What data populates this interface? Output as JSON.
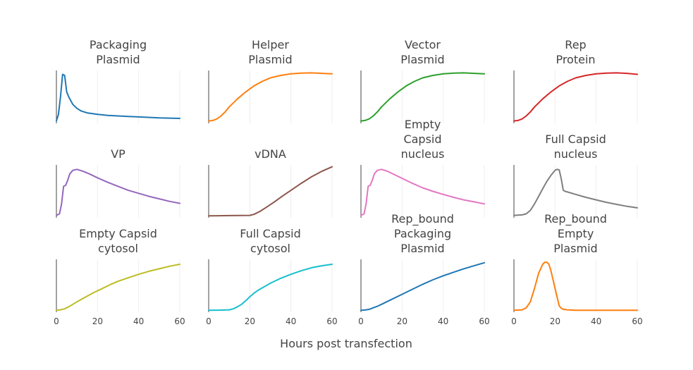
{
  "chart_data": {
    "type": "line",
    "layout": "small-multiples-4x3",
    "xlabel": "Hours post transfection",
    "xlim": [
      0,
      60
    ],
    "xticks": [
      0,
      20,
      40,
      60
    ],
    "x_tick_labels_on_bottom_row_only": true,
    "y_ticks": "hidden",
    "grid": "vertical",
    "panels": [
      {
        "title": [
          "Packaging",
          "Plasmid"
        ],
        "color": "#1f77b4",
        "x": [
          0,
          1,
          2,
          3,
          4,
          5,
          6,
          8,
          10,
          12,
          15,
          20,
          25,
          30,
          35,
          40,
          50,
          60
        ],
        "y": [
          0.02,
          0.15,
          0.5,
          0.95,
          0.93,
          0.6,
          0.5,
          0.35,
          0.27,
          0.22,
          0.18,
          0.15,
          0.13,
          0.12,
          0.11,
          0.1,
          0.08,
          0.07
        ]
      },
      {
        "title": [
          "Helper",
          "Plasmid"
        ],
        "color": "#ff7f0e",
        "x": [
          0,
          2,
          4,
          6,
          8,
          10,
          14,
          18,
          22,
          26,
          30,
          35,
          40,
          45,
          50,
          55,
          60
        ],
        "y": [
          0.02,
          0.03,
          0.06,
          0.12,
          0.2,
          0.3,
          0.46,
          0.6,
          0.72,
          0.81,
          0.88,
          0.93,
          0.96,
          0.975,
          0.98,
          0.97,
          0.96
        ]
      },
      {
        "title": [
          "Vector",
          "Plasmid"
        ],
        "color": "#2ca02c",
        "x": [
          0,
          2,
          4,
          6,
          8,
          10,
          14,
          18,
          22,
          26,
          30,
          35,
          40,
          45,
          50,
          55,
          60
        ],
        "y": [
          0.02,
          0.03,
          0.06,
          0.12,
          0.2,
          0.3,
          0.46,
          0.6,
          0.72,
          0.81,
          0.88,
          0.93,
          0.96,
          0.975,
          0.98,
          0.97,
          0.96
        ]
      },
      {
        "title": [
          "Rep",
          "Protein"
        ],
        "color": "#d62728",
        "x": [
          0,
          2,
          4,
          6,
          8,
          10,
          14,
          18,
          22,
          26,
          30,
          35,
          40,
          45,
          50,
          55,
          60
        ],
        "y": [
          0.02,
          0.03,
          0.06,
          0.12,
          0.2,
          0.3,
          0.46,
          0.6,
          0.72,
          0.81,
          0.88,
          0.93,
          0.96,
          0.975,
          0.98,
          0.97,
          0.95
        ]
      },
      {
        "title": [
          "VP"
        ],
        "color": "#9467bd",
        "x": [
          0,
          1.5,
          2.5,
          3.5,
          4.5,
          5.5,
          6.5,
          8,
          10,
          13,
          16,
          20,
          25,
          30,
          35,
          40,
          45,
          50,
          55,
          60
        ],
        "y": [
          0.02,
          0.05,
          0.25,
          0.6,
          0.62,
          0.72,
          0.85,
          0.92,
          0.94,
          0.9,
          0.85,
          0.77,
          0.68,
          0.6,
          0.52,
          0.46,
          0.4,
          0.35,
          0.3,
          0.26
        ]
      },
      {
        "title": [
          "vDNA"
        ],
        "color": "#8c564b",
        "x": [
          0,
          5,
          10,
          15,
          20,
          22,
          25,
          28,
          32,
          36,
          40,
          45,
          50,
          55,
          60
        ],
        "y": [
          0.01,
          0.012,
          0.015,
          0.018,
          0.02,
          0.04,
          0.1,
          0.18,
          0.29,
          0.41,
          0.52,
          0.66,
          0.79,
          0.9,
          0.99
        ]
      },
      {
        "title": [
          "Empty",
          "Capsid",
          "nucleus"
        ],
        "color": "#e377c2",
        "x": [
          0,
          1.5,
          2.5,
          3.5,
          4.5,
          5.5,
          6.5,
          8,
          10,
          13,
          16,
          20,
          25,
          30,
          35,
          40,
          45,
          50,
          55,
          60
        ],
        "y": [
          0.02,
          0.05,
          0.25,
          0.6,
          0.62,
          0.72,
          0.85,
          0.92,
          0.94,
          0.9,
          0.84,
          0.76,
          0.66,
          0.57,
          0.5,
          0.44,
          0.38,
          0.33,
          0.29,
          0.25
        ]
      },
      {
        "title": [
          "Full Capsid",
          "nucleus"
        ],
        "color": "#7f7f7f",
        "x": [
          0,
          4,
          6,
          8,
          10,
          12,
          14,
          16,
          18,
          20,
          21,
          22,
          23,
          24,
          25,
          30,
          35,
          40,
          45,
          50,
          55,
          60
        ],
        "y": [
          0.02,
          0.03,
          0.05,
          0.12,
          0.25,
          0.4,
          0.55,
          0.7,
          0.82,
          0.92,
          0.94,
          0.93,
          0.75,
          0.52,
          0.5,
          0.44,
          0.38,
          0.33,
          0.28,
          0.24,
          0.2,
          0.17
        ]
      },
      {
        "title": [
          "Empty Capsid",
          "cytosol"
        ],
        "color": "#bcbd22",
        "x": [
          0,
          2,
          4,
          6,
          8,
          10,
          14,
          18,
          22,
          26,
          30,
          35,
          40,
          45,
          50,
          55,
          60
        ],
        "y": [
          0.01,
          0.02,
          0.04,
          0.08,
          0.13,
          0.18,
          0.27,
          0.36,
          0.44,
          0.52,
          0.59,
          0.66,
          0.73,
          0.79,
          0.84,
          0.89,
          0.93
        ]
      },
      {
        "title": [
          "Full Capsid",
          "cytosol"
        ],
        "color": "#17becf",
        "x": [
          0,
          5,
          10,
          12,
          14,
          16,
          18,
          20,
          22,
          24,
          27,
          30,
          35,
          40,
          45,
          50,
          55,
          60
        ],
        "y": [
          0.01,
          0.012,
          0.02,
          0.04,
          0.08,
          0.13,
          0.2,
          0.28,
          0.35,
          0.41,
          0.48,
          0.55,
          0.65,
          0.73,
          0.8,
          0.86,
          0.9,
          0.93
        ]
      },
      {
        "title": [
          "Rep_bound",
          "Packaging",
          "Plasmid"
        ],
        "color": "#1f77b4",
        "x": [
          0,
          2,
          4,
          6,
          8,
          10,
          15,
          20,
          25,
          30,
          35,
          40,
          45,
          50,
          55,
          60
        ],
        "y": [
          0.01,
          0.015,
          0.03,
          0.06,
          0.09,
          0.13,
          0.23,
          0.33,
          0.43,
          0.53,
          0.62,
          0.7,
          0.77,
          0.84,
          0.9,
          0.96
        ]
      },
      {
        "title": [
          "Rep_bound",
          "Empty",
          "Plasmid"
        ],
        "color": "#ff7f0e",
        "x": [
          0,
          4,
          6,
          8,
          10,
          12,
          14,
          15,
          16,
          17,
          18,
          20,
          22,
          23,
          24,
          26,
          30,
          40,
          50,
          60
        ],
        "y": [
          0.01,
          0.02,
          0.06,
          0.18,
          0.45,
          0.75,
          0.93,
          0.97,
          0.97,
          0.93,
          0.8,
          0.45,
          0.1,
          0.05,
          0.03,
          0.02,
          0.01,
          0.01,
          0.01,
          0.01
        ]
      }
    ]
  }
}
